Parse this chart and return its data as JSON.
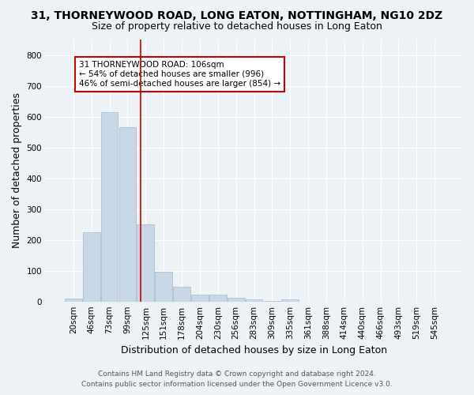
{
  "title": "31, THORNEYWOOD ROAD, LONG EATON, NOTTINGHAM, NG10 2DZ",
  "subtitle": "Size of property relative to detached houses in Long Eaton",
  "xlabel": "Distribution of detached houses by size in Long Eaton",
  "ylabel": "Number of detached properties",
  "footer_line1": "Contains HM Land Registry data © Crown copyright and database right 2024.",
  "footer_line2": "Contains public sector information licensed under the Open Government Licence v3.0.",
  "categories": [
    "20sqm",
    "46sqm",
    "73sqm",
    "99sqm",
    "125sqm",
    "151sqm",
    "178sqm",
    "204sqm",
    "230sqm",
    "256sqm",
    "283sqm",
    "309sqm",
    "335sqm",
    "361sqm",
    "388sqm",
    "414sqm",
    "440sqm",
    "466sqm",
    "493sqm",
    "519sqm",
    "545sqm"
  ],
  "values": [
    10,
    225,
    615,
    565,
    250,
    97,
    48,
    23,
    23,
    13,
    6,
    3,
    8,
    0,
    0,
    0,
    0,
    0,
    0,
    0,
    0
  ],
  "bar_color": "#c8d8e8",
  "bar_edgecolor": "#a0b8cc",
  "property_line_color": "#cc0000",
  "annotation_text": "31 THORNEYWOOD ROAD: 106sqm\n← 54% of detached houses are smaller (996)\n46% of semi-detached houses are larger (854) →",
  "annotation_box_facecolor": "#ffffff",
  "annotation_box_edgecolor": "#cc0000",
  "ylim": [
    0,
    850
  ],
  "yticks": [
    0,
    100,
    200,
    300,
    400,
    500,
    600,
    700,
    800
  ],
  "background_color": "#edf2f7",
  "grid_color": "#ffffff",
  "title_fontsize": 10,
  "subtitle_fontsize": 9,
  "axis_label_fontsize": 9,
  "tick_fontsize": 7.5,
  "annotation_fontsize": 7.5,
  "footer_fontsize": 6.5
}
